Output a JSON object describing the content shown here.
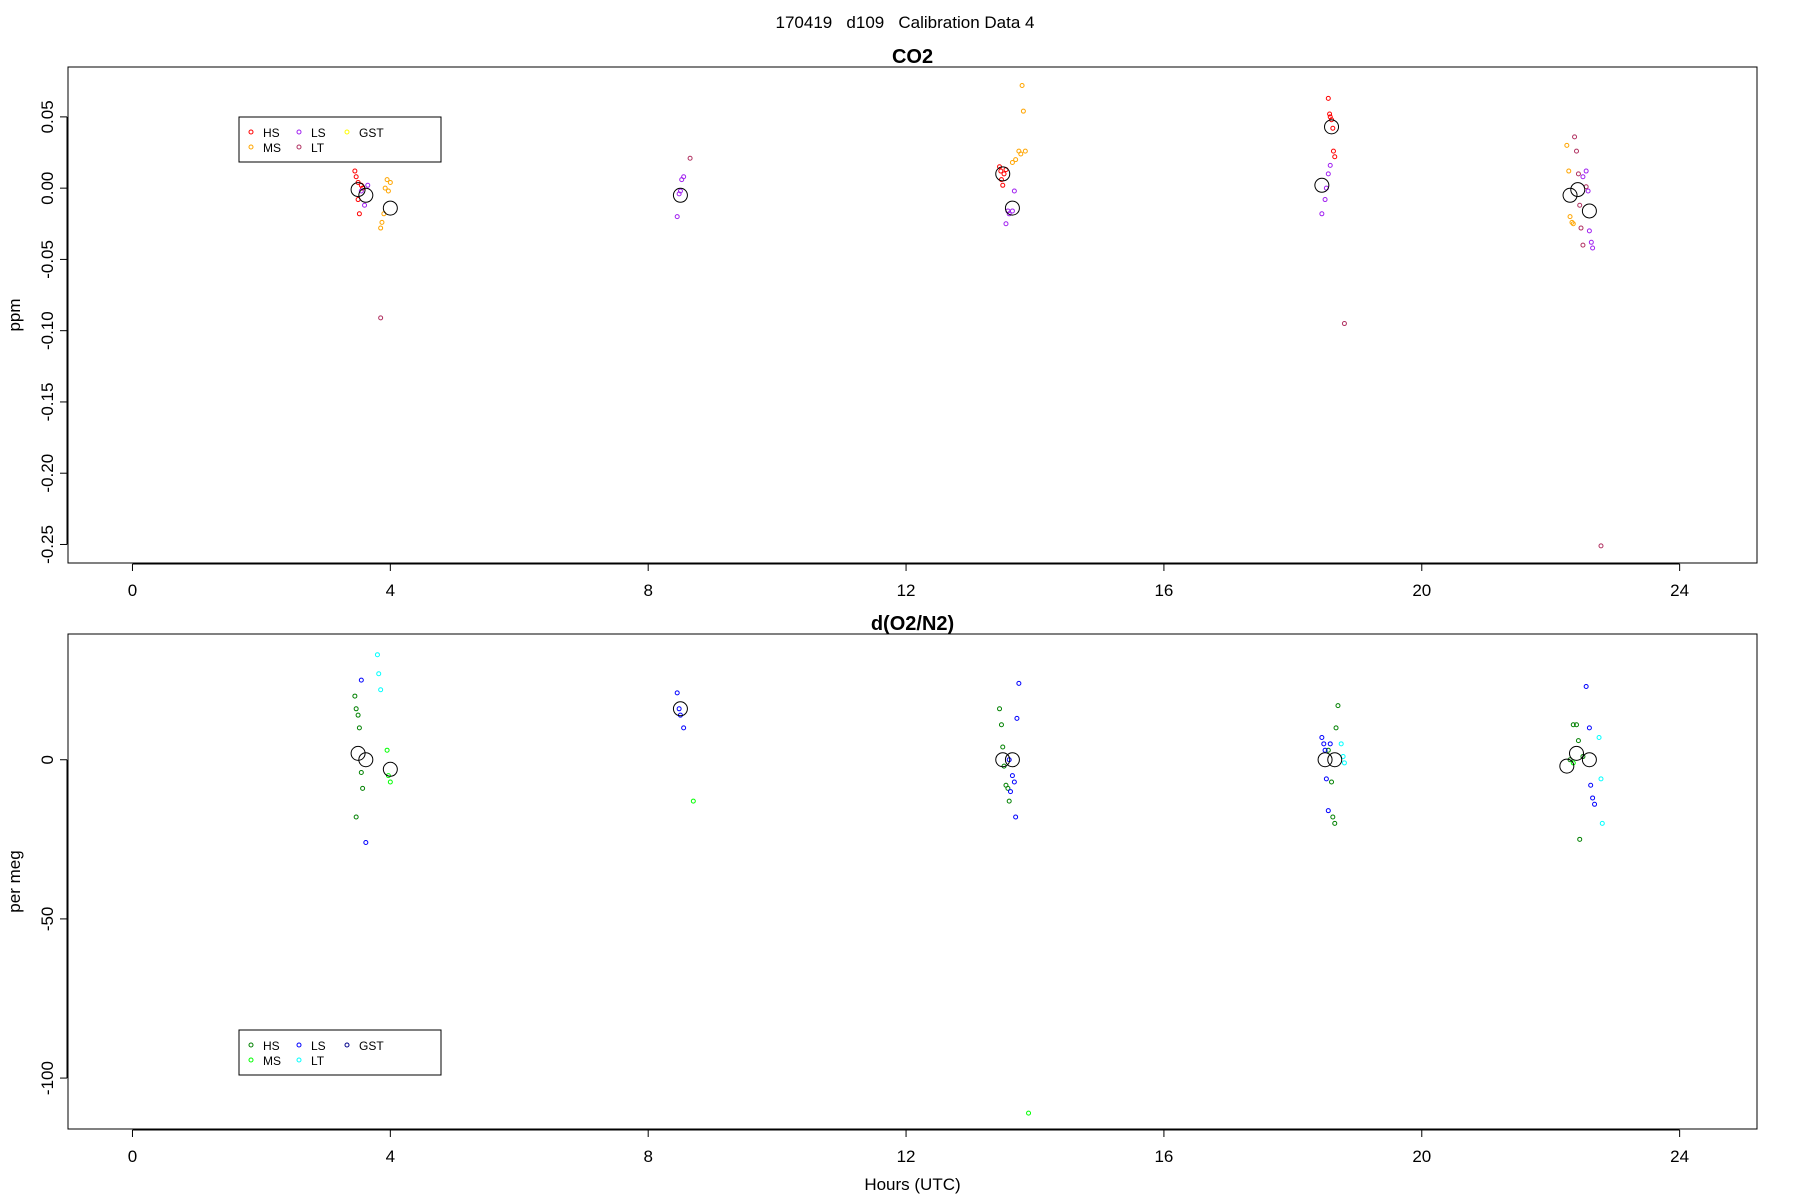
{
  "figure_title": "170419   d109   Calibration Data 4",
  "chart_data": [
    {
      "type": "scatter",
      "title": "CO2",
      "ylabel": "ppm",
      "xlabel": "",
      "xlim": [
        -1,
        25.2
      ],
      "ylim": [
        -0.263,
        0.085
      ],
      "xticks": [
        0,
        4,
        8,
        12,
        16,
        20,
        24
      ],
      "yticks": [
        0.05,
        0.0,
        -0.05,
        -0.1,
        -0.15,
        -0.2,
        -0.25
      ],
      "ytick_labels": [
        "0.05",
        "0.00",
        "-0.05",
        "-0.10",
        "-0.15",
        "-0.20",
        "-0.25"
      ],
      "legend": {
        "placement": "top-left",
        "columns": 3
      },
      "series": [
        {
          "name": "HS",
          "color": "#ff0000",
          "x": [
            3.45,
            3.47,
            3.5,
            3.5,
            3.52,
            3.55,
            3.57,
            13.45,
            13.47,
            13.48,
            13.5,
            13.52,
            13.55,
            18.55,
            18.57,
            18.58,
            18.6,
            18.62,
            18.63,
            18.65
          ],
          "y": [
            0.012,
            0.008,
            0.004,
            -0.008,
            -0.018,
            0.002,
            0.0,
            0.015,
            0.012,
            0.006,
            0.002,
            0.01,
            0.013,
            0.063,
            0.052,
            0.05,
            0.048,
            0.042,
            0.026,
            0.022
          ]
        },
        {
          "name": "MS",
          "color": "#ffa500",
          "x": [
            3.85,
            3.87,
            3.9,
            3.92,
            3.95,
            3.97,
            4.0,
            13.65,
            13.7,
            13.75,
            13.78,
            13.8,
            13.82,
            13.85,
            22.25,
            22.28,
            22.3,
            22.33,
            22.35
          ],
          "y": [
            -0.028,
            -0.024,
            -0.018,
            0.0,
            0.006,
            -0.002,
            0.004,
            0.018,
            0.02,
            0.026,
            0.024,
            0.072,
            0.054,
            0.026,
            0.03,
            0.012,
            -0.02,
            -0.024,
            -0.025
          ]
        },
        {
          "name": "LS",
          "color": "#a020f0",
          "x": [
            3.55,
            3.6,
            3.65,
            8.45,
            8.48,
            8.5,
            8.52,
            8.55,
            13.55,
            13.58,
            13.6,
            13.65,
            13.68,
            18.45,
            18.5,
            18.52,
            18.55,
            18.58,
            22.5,
            22.55,
            22.58,
            22.6,
            22.63,
            22.65
          ],
          "y": [
            -0.002,
            -0.012,
            0.002,
            -0.02,
            -0.004,
            -0.002,
            0.006,
            0.008,
            -0.025,
            -0.016,
            -0.018,
            -0.016,
            -0.002,
            -0.018,
            -0.008,
            0.0,
            0.01,
            0.016,
            0.008,
            0.012,
            -0.002,
            -0.03,
            -0.038,
            -0.042
          ]
        },
        {
          "name": "LT",
          "color": "#b03060",
          "x": [
            3.85,
            8.65,
            18.8,
            22.37,
            22.4,
            22.43,
            22.45,
            22.47,
            22.5,
            22.55,
            22.78
          ],
          "y": [
            -0.091,
            0.021,
            -0.095,
            0.036,
            0.026,
            0.01,
            -0.012,
            -0.028,
            -0.04,
            0.001,
            -0.251
          ]
        },
        {
          "name": "GST",
          "color": "#ffff00",
          "x": [],
          "y": []
        }
      ],
      "means": {
        "x": [
          3.5,
          3.62,
          4.0,
          8.5,
          13.5,
          13.65,
          18.45,
          18.6,
          22.3,
          22.42,
          22.6
        ],
        "y": [
          -0.001,
          -0.005,
          -0.014,
          -0.005,
          0.01,
          -0.014,
          0.002,
          0.043,
          -0.005,
          -0.001,
          -0.016
        ]
      }
    },
    {
      "type": "scatter",
      "title": "d(O2/N2)",
      "ylabel": "per meg",
      "xlabel": "Hours (UTC)",
      "xlim": [
        -1,
        25.2
      ],
      "ylim": [
        -116,
        39.5
      ],
      "xticks": [
        0,
        4,
        8,
        12,
        16,
        20,
        24
      ],
      "yticks": [
        0,
        -50,
        -100
      ],
      "ytick_labels": [
        "0",
        "-50",
        "-100"
      ],
      "legend": {
        "placement": "bottom-left",
        "columns": 3
      },
      "series": [
        {
          "name": "HS",
          "color": "#008000",
          "x": [
            3.45,
            3.47,
            3.5,
            3.52,
            3.55,
            3.57,
            3.47,
            13.45,
            13.48,
            13.5,
            13.52,
            13.55,
            13.58,
            13.6,
            18.55,
            18.6,
            18.62,
            18.65,
            18.67,
            18.7,
            22.3,
            22.35,
            22.4,
            22.43,
            22.45,
            22.5
          ],
          "y": [
            20,
            16,
            14,
            10,
            -4,
            -9,
            -18,
            16,
            11,
            4,
            -2,
            -8,
            -9,
            -13,
            3,
            -7,
            -18,
            -20,
            10,
            17,
            0,
            11,
            11,
            6,
            -25,
            1
          ]
        },
        {
          "name": "MS",
          "color": "#00ff00",
          "x": [
            3.95,
            3.97,
            4.0,
            8.7,
            13.9,
            22.35
          ],
          "y": [
            3,
            -5,
            -7,
            -13,
            -111,
            -1
          ]
        },
        {
          "name": "LS",
          "color": "#0000ff",
          "x": [
            3.55,
            3.62,
            8.45,
            8.48,
            8.5,
            8.55,
            13.6,
            13.62,
            13.65,
            13.68,
            13.7,
            13.72,
            13.75,
            18.45,
            18.48,
            18.5,
            18.52,
            18.55,
            18.58,
            22.55,
            22.6,
            22.62,
            22.65,
            22.68
          ],
          "y": [
            25,
            -26,
            21,
            16,
            14,
            10,
            0,
            -10,
            -5,
            -7,
            -18,
            13,
            24,
            7,
            5,
            3,
            -6,
            -16,
            5,
            23,
            10,
            -8,
            -12,
            -14
          ]
        },
        {
          "name": "LT",
          "color": "#00ffff",
          "x": [
            3.8,
            3.82,
            3.85,
            18.75,
            18.78,
            18.8,
            22.75,
            22.78,
            22.8
          ],
          "y": [
            33,
            27,
            22,
            5,
            1,
            -1,
            7,
            -6,
            -20
          ]
        },
        {
          "name": "GST",
          "color": "#00008b",
          "x": [],
          "y": []
        }
      ],
      "means": {
        "x": [
          3.5,
          3.62,
          4.0,
          8.5,
          13.5,
          13.65,
          18.5,
          18.65,
          22.25,
          22.4,
          22.6
        ],
        "y": [
          2,
          0,
          -3,
          16,
          0,
          0,
          0,
          0,
          -2,
          2,
          0
        ]
      }
    }
  ]
}
